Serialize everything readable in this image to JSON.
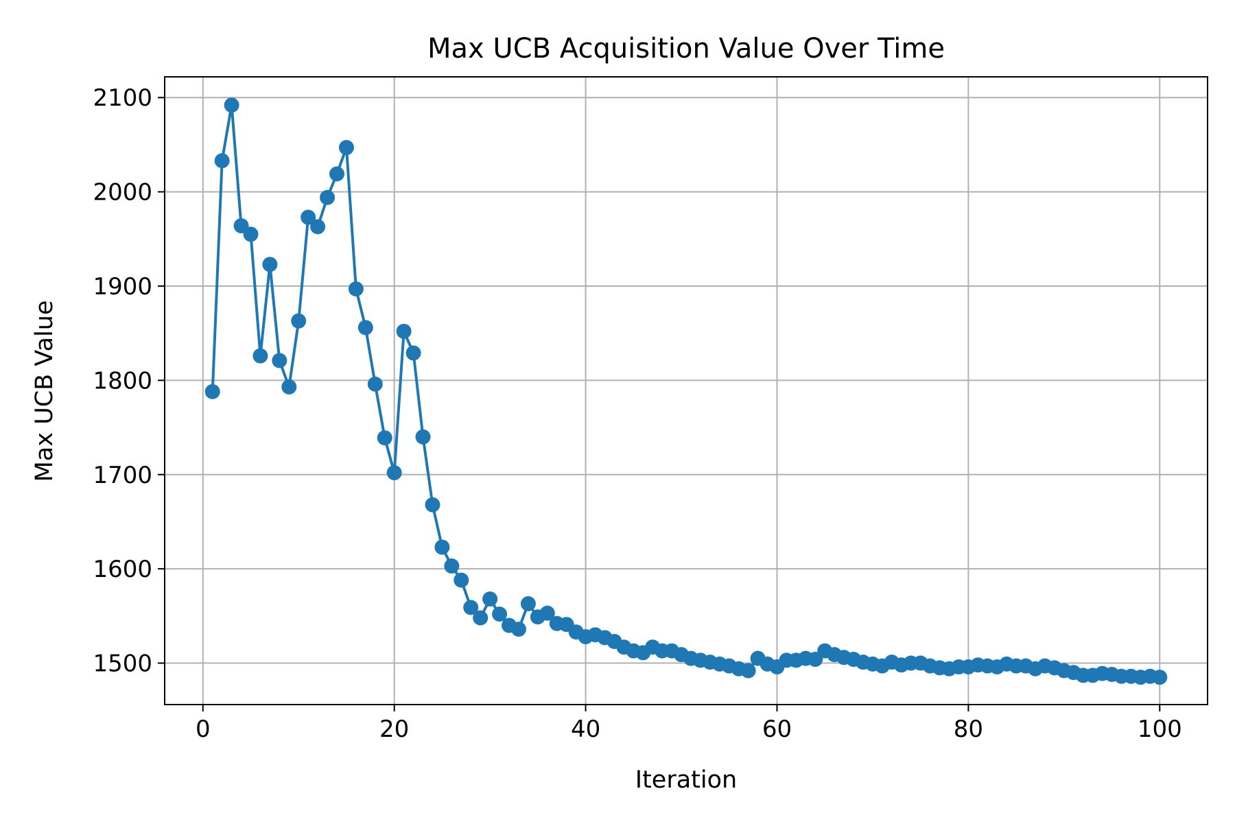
{
  "chart_data": {
    "type": "line",
    "title": "Max UCB Acquisition Value Over Time",
    "xlabel": "Iteration",
    "ylabel": "Max UCB Value",
    "xlim": [
      -4,
      105
    ],
    "ylim": [
      1456,
      2122
    ],
    "x_ticks": [
      0,
      20,
      40,
      60,
      80,
      100
    ],
    "y_ticks": [
      1500,
      1600,
      1700,
      1800,
      1900,
      2000,
      2100
    ],
    "grid": true,
    "legend": "none",
    "series": [
      {
        "color": "#1f77b4",
        "marker": "circle",
        "x": [
          1,
          2,
          3,
          4,
          5,
          6,
          7,
          8,
          9,
          10,
          11,
          12,
          13,
          14,
          15,
          16,
          17,
          18,
          19,
          20,
          21,
          22,
          23,
          24,
          25,
          26,
          27,
          28,
          29,
          30,
          31,
          32,
          33,
          34,
          35,
          36,
          37,
          38,
          39,
          40,
          41,
          42,
          43,
          44,
          45,
          46,
          47,
          48,
          49,
          50,
          51,
          52,
          53,
          54,
          55,
          56,
          57,
          58,
          59,
          60,
          61,
          62,
          63,
          64,
          65,
          66,
          67,
          68,
          69,
          70,
          71,
          72,
          73,
          74,
          75,
          76,
          77,
          78,
          79,
          80,
          81,
          82,
          83,
          84,
          85,
          86,
          87,
          88,
          89,
          90,
          91,
          92,
          93,
          94,
          95,
          96,
          97,
          98,
          99,
          100
        ],
        "y": [
          1788,
          2033,
          2092,
          1964,
          1955,
          1826,
          1923,
          1821,
          1793,
          1863,
          1973,
          1963,
          1994,
          2019,
          2047,
          1897,
          1856,
          1796,
          1739,
          1702,
          1852,
          1829,
          1740,
          1668,
          1623,
          1603,
          1588,
          1559,
          1548,
          1568,
          1552,
          1540,
          1536,
          1563,
          1549,
          1553,
          1542,
          1541,
          1533,
          1528,
          1530,
          1527,
          1523,
          1517,
          1513,
          1511,
          1517,
          1513,
          1513,
          1509,
          1505,
          1503,
          1501,
          1499,
          1497,
          1494,
          1492,
          1505,
          1499,
          1496,
          1503,
          1503,
          1505,
          1504,
          1513,
          1509,
          1506,
          1504,
          1501,
          1499,
          1497,
          1501,
          1498,
          1500,
          1500,
          1497,
          1495,
          1494,
          1496,
          1496,
          1498,
          1497,
          1496,
          1499,
          1497,
          1497,
          1494,
          1497,
          1495,
          1492,
          1490,
          1487,
          1487,
          1489,
          1488,
          1486,
          1486,
          1485,
          1486,
          1485
        ]
      }
    ]
  }
}
